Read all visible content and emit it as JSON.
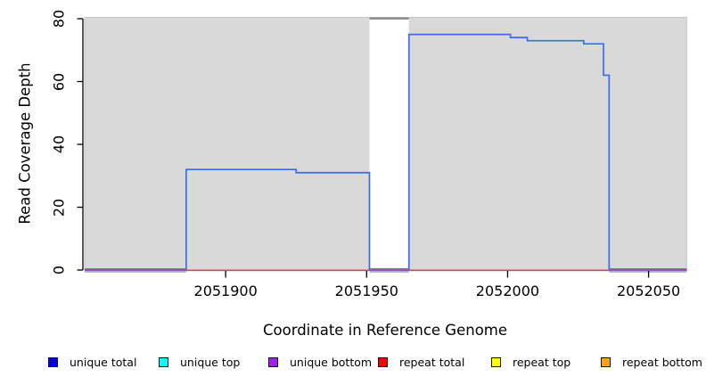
{
  "figure": {
    "background": "#ffffff",
    "text_color": "#000000"
  },
  "axes": {
    "x": {
      "label": "Coordinate in Reference Genome",
      "ticks": [
        "2051900",
        "2051950",
        "2052000",
        "2052050"
      ],
      "tick_values": [
        2051900,
        2051950,
        2052000,
        2052050
      ]
    },
    "y": {
      "label": "Read Coverage Depth",
      "ticks": [
        "0",
        "20",
        "40",
        "60",
        "80"
      ],
      "tick_values": [
        0,
        20,
        40,
        60,
        80
      ]
    }
  },
  "legend": {
    "items": [
      {
        "label": "unique total",
        "color": "#0000ee"
      },
      {
        "label": "unique top",
        "color": "#00ffff"
      },
      {
        "label": "unique bottom",
        "color": "#a020f0"
      },
      {
        "label": "repeat total",
        "color": "#ff0000"
      },
      {
        "label": "repeat top",
        "color": "#ffff00"
      },
      {
        "label": "repeat bottom",
        "color": "#ffa500"
      }
    ]
  },
  "chart_data": {
    "type": "line",
    "title": "",
    "xlabel": "Coordinate in Reference Genome",
    "ylabel": "Read Coverage Depth",
    "xlim": [
      2051850,
      2052063.5
    ],
    "ylim": [
      0,
      80
    ],
    "x_ticks": [
      2051900,
      2051950,
      2052000,
      2052050
    ],
    "y_ticks": [
      0,
      20,
      40,
      60,
      80
    ],
    "grid": false,
    "legend_position": "bottom",
    "panel_background": "#d9d9d9",
    "panel_border": "#c4c4c4",
    "uncovered_band": {
      "from": 2051951,
      "to": 2051965,
      "fill": "#ffffff",
      "top_border": "#8c8c8c"
    },
    "series": [
      {
        "name": "unique total",
        "type": "step",
        "line_color": "#3b6cf0",
        "segments": [
          {
            "from": 2051850,
            "to": 2051886,
            "depth": 0
          },
          {
            "from": 2051886,
            "to": 2051925,
            "depth": 32
          },
          {
            "from": 2051925,
            "to": 2051951,
            "depth": 31
          },
          {
            "from": 2051951,
            "to": 2051965,
            "depth": 0
          },
          {
            "from": 2051965,
            "to": 2052001,
            "depth": 75
          },
          {
            "from": 2052001,
            "to": 2052007,
            "depth": 74
          },
          {
            "from": 2052007,
            "to": 2052027,
            "depth": 73
          },
          {
            "from": 2052027,
            "to": 2052034,
            "depth": 72
          },
          {
            "from": 2052034,
            "to": 2052036,
            "depth": 62
          },
          {
            "from": 2052036,
            "to": 2052063.5,
            "depth": 0
          }
        ]
      },
      {
        "name": "repeat total",
        "type": "step",
        "line_color": "#e84156",
        "segments": [
          {
            "from": 2051850,
            "to": 2052063.5,
            "depth": 0
          }
        ]
      },
      {
        "name": "unique bottom",
        "type": "step",
        "line_color": "#ab9ce8",
        "segments": [
          {
            "from": 2051850,
            "to": 2051886,
            "depth": 0
          },
          {
            "from": 2051951,
            "to": 2051965,
            "depth": 0
          },
          {
            "from": 2052036,
            "to": 2052063.5,
            "depth": 0
          }
        ]
      }
    ]
  }
}
